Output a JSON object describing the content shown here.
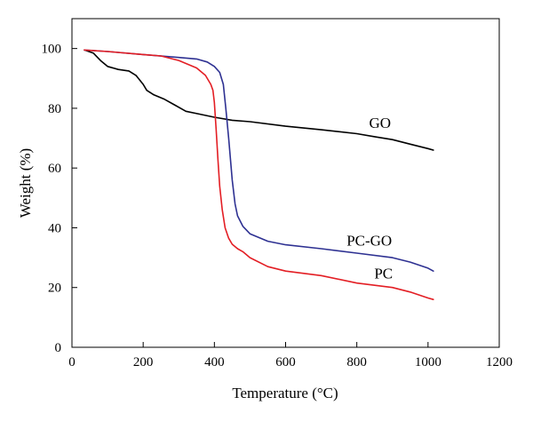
{
  "chart_data": {
    "type": "line",
    "title": "",
    "xlabel": "Temperature (°C)",
    "ylabel": "Weight (%)",
    "xlim": [
      0,
      1200
    ],
    "ylim": [
      0,
      110
    ],
    "xticks": [
      0,
      200,
      400,
      600,
      800,
      1000,
      1200
    ],
    "yticks": [
      0,
      20,
      40,
      60,
      80,
      100
    ],
    "grid": false,
    "legend": "none (series labelled inline)",
    "series": [
      {
        "name": "GO",
        "color": "#000000",
        "x": [
          35,
          60,
          80,
          100,
          130,
          160,
          180,
          200,
          210,
          230,
          260,
          290,
          320,
          360,
          400,
          450,
          500,
          600,
          700,
          800,
          850,
          900,
          950,
          1000,
          1015
        ],
        "y": [
          99.5,
          98.5,
          96,
          94,
          93,
          92.5,
          91,
          88,
          86,
          84.5,
          83,
          81,
          79,
          78,
          77,
          76,
          75.5,
          74,
          72.8,
          71.5,
          70.5,
          69.5,
          68,
          66.5,
          66
        ]
      },
      {
        "name": "PC-GO",
        "color": "#2e3192",
        "x": [
          35,
          100,
          200,
          300,
          350,
          380,
          400,
          415,
          425,
          432,
          440,
          450,
          458,
          465,
          480,
          500,
          550,
          600,
          700,
          800,
          900,
          950,
          1000,
          1015
        ],
        "y": [
          99.5,
          99,
          98,
          97,
          96.5,
          95.5,
          94,
          92,
          88,
          80,
          70,
          56,
          48,
          44,
          40.5,
          38,
          35.5,
          34.3,
          33,
          31.5,
          30,
          28.5,
          26.5,
          25.5
        ]
      },
      {
        "name": "PC",
        "color": "#e31e24",
        "x": [
          35,
          100,
          200,
          250,
          300,
          350,
          375,
          390,
          396,
          400,
          405,
          410,
          415,
          422,
          430,
          440,
          450,
          465,
          480,
          500,
          550,
          600,
          700,
          800,
          900,
          950,
          1000,
          1015
        ],
        "y": [
          99.5,
          99,
          98,
          97.5,
          96,
          93.5,
          91,
          88,
          86,
          82,
          73,
          63,
          54,
          46,
          40,
          36.5,
          34.5,
          33,
          32,
          30,
          27,
          25.5,
          24,
          21.5,
          20,
          18.5,
          16.5,
          16
        ]
      }
    ],
    "annotations": [
      {
        "text": "GO",
        "x": 865,
        "y": 73.5
      },
      {
        "text": "PC-GO",
        "x": 835,
        "y": 34
      },
      {
        "text": "PC",
        "x": 875,
        "y": 23
      }
    ]
  }
}
